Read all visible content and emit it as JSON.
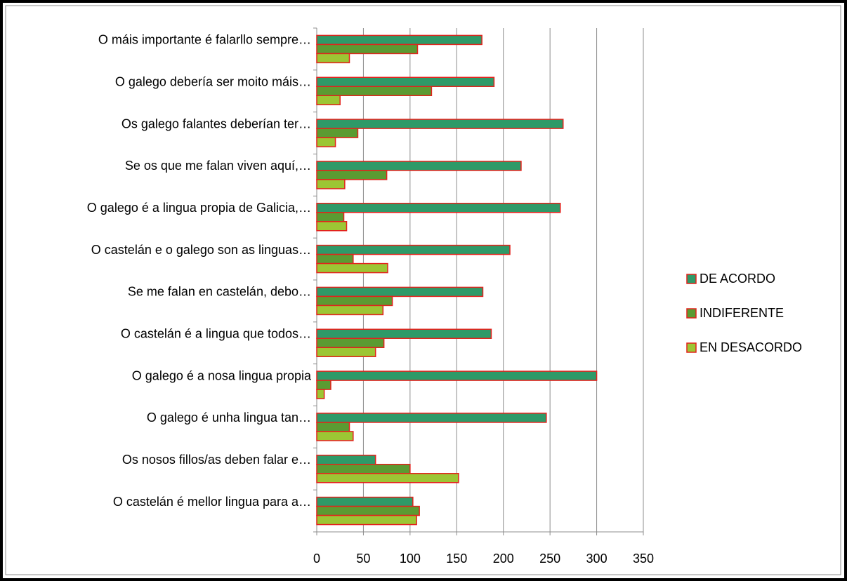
{
  "chart_data": {
    "type": "barh",
    "categories": [
      "O máis importante é falarllo sempre…",
      "O galego debería ser moito máis…",
      "Os galego falantes deberían ter…",
      "Se os que me falan viven aquí,…",
      "O galego é a lingua propia de Galicia,…",
      "O castelán e o galego son as linguas…",
      "Se me falan en castelán, debo…",
      "O castelán é a lingua que todos…",
      "O galego é a nosa lingua propia",
      "O galego é unha lingua tan…",
      "Os nosos fillos/as deben falar e…",
      "O castelán é mellor lingua para a…"
    ],
    "series": [
      {
        "name": "DE ACORDO",
        "color": "#2e9a68",
        "values": [
          177,
          190,
          264,
          219,
          261,
          207,
          178,
          187,
          300,
          246,
          63,
          103
        ]
      },
      {
        "name": "INDIFERENTE",
        "color": "#5b9b32",
        "values": [
          108,
          123,
          44,
          75,
          29,
          39,
          81,
          72,
          15,
          35,
          100,
          110
        ]
      },
      {
        "name": "EN DESACORDO",
        "color": "#9cc634",
        "values": [
          35,
          25,
          20,
          30,
          32,
          76,
          71,
          63,
          8,
          39,
          152,
          107
        ]
      }
    ],
    "bar_edge_color": "#e3221c",
    "xlim": [
      0,
      350
    ],
    "xticks": [
      0,
      50,
      100,
      150,
      200,
      250,
      300,
      350
    ],
    "grid": true,
    "legend": "right"
  }
}
